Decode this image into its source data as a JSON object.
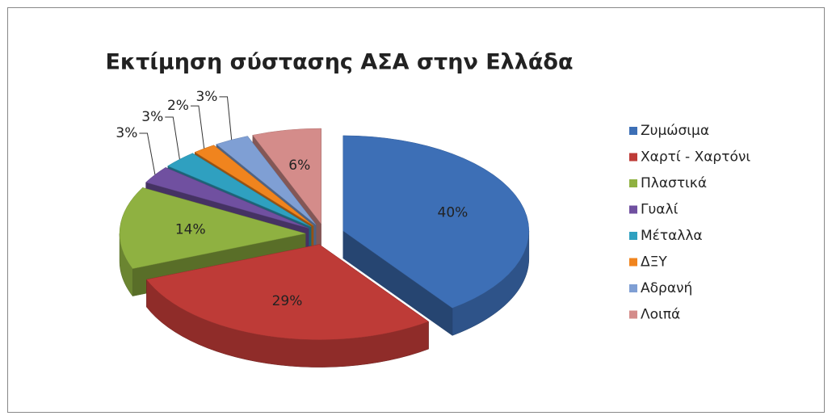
{
  "chart_data": {
    "type": "pie",
    "title": "Εκτίμηση σύστασης ΑΣΑ στην Ελλάδα",
    "categories": [
      "Ζυμώσιμα",
      "Χαρτί - Χαρτόνι",
      "Πλαστικά",
      "Γυαλί",
      "Μέταλλα",
      "ΔΞΥ",
      "Αδρανή",
      "Λοιπά"
    ],
    "values": [
      40,
      29,
      14,
      3,
      3,
      2,
      3,
      6
    ],
    "value_labels": [
      "40%",
      "29%",
      "14%",
      "3%",
      "3%",
      "2%",
      "3%",
      "6%"
    ],
    "colors": [
      "#3d6fb6",
      "#be3b37",
      "#8fb141",
      "#7050a0",
      "#2fa0c0",
      "#f0841e",
      "#7f9fd4",
      "#d48c8a"
    ],
    "legend": "right"
  }
}
